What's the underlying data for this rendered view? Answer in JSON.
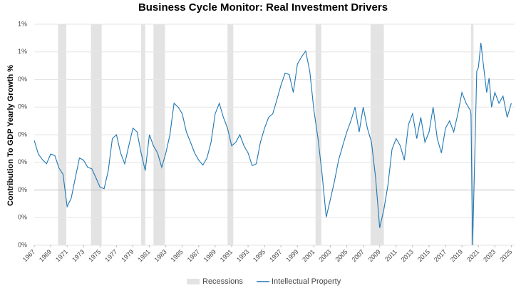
{
  "chart_data": {
    "type": "line",
    "title": "Business Cycle Monitor: Real Investment Drivers",
    "y_label": "Contribution To GDP Yearly Growth %",
    "xlim": [
      1967,
      2025.4
    ],
    "xticks": [
      1967,
      1969,
      1971,
      1973,
      1975,
      1977,
      1979,
      1981,
      1983,
      1985,
      1987,
      1989,
      1991,
      1993,
      1995,
      1997,
      1999,
      2001,
      2003,
      2005,
      2007,
      2009,
      2011,
      2013,
      2015,
      2017,
      2019,
      2021,
      2023,
      2025
    ],
    "ylim": [
      -0.2,
      0.6
    ],
    "yticks": [
      {
        "value": 0.6,
        "label": "1%"
      },
      {
        "value": 0.5,
        "label": "1%"
      },
      {
        "value": 0.4,
        "label": "0%"
      },
      {
        "value": 0.3,
        "label": "0%"
      },
      {
        "value": 0.2,
        "label": "0%"
      },
      {
        "value": 0.1,
        "label": "0%"
      },
      {
        "value": 0,
        "label": "0%"
      },
      {
        "value": -0.1,
        "label": "0%"
      },
      {
        "value": -0.2,
        "label": "0%"
      }
    ],
    "grid": true,
    "legend": "bottom",
    "recessions": {
      "name": "Recessions",
      "color": "#e3e3e3",
      "spans": [
        [
          1969.9,
          1970.9
        ],
        [
          1973.9,
          1975.2
        ],
        [
          1980.0,
          1980.5
        ],
        [
          1981.5,
          1982.9
        ],
        [
          1990.5,
          1991.2
        ],
        [
          2001.2,
          2001.9
        ],
        [
          2007.9,
          2009.5
        ],
        [
          2020.1,
          2020.4
        ]
      ]
    },
    "x": [
      1967,
      1967.5,
      1968,
      1968.5,
      1969,
      1969.5,
      1970,
      1970.5,
      1971,
      1971.5,
      1972,
      1972.5,
      1973,
      1973.5,
      1974,
      1974.5,
      1975,
      1975.5,
      1976,
      1976.5,
      1977,
      1977.5,
      1978,
      1978.5,
      1979,
      1979.5,
      1980,
      1980.5,
      1981,
      1981.5,
      1982,
      1982.5,
      1983,
      1983.5,
      1984,
      1984.5,
      1985,
      1985.5,
      1986,
      1986.5,
      1987,
      1987.5,
      1988,
      1988.5,
      1989,
      1989.5,
      1990,
      1990.5,
      1991,
      1991.5,
      1992,
      1992.5,
      1993,
      1993.5,
      1994,
      1994.5,
      1995,
      1995.5,
      1996,
      1996.5,
      1997,
      1997.5,
      1998,
      1998.5,
      1999,
      1999.5,
      2000,
      2000.5,
      2001,
      2001.5,
      2002,
      2002.5,
      2003,
      2003.5,
      2004,
      2004.5,
      2005,
      2005.5,
      2006,
      2006.5,
      2007,
      2007.5,
      2008,
      2008.5,
      2009,
      2009.5,
      2010,
      2010.5,
      2011,
      2011.5,
      2012,
      2012.5,
      2013,
      2013.5,
      2014,
      2014.5,
      2015,
      2015.5,
      2016,
      2016.5,
      2017,
      2017.5,
      2018,
      2018.5,
      2019,
      2019.5,
      2020,
      2020.1,
      2020.3,
      2020.5,
      2020.8,
      2021,
      2021.3,
      2021.6,
      2022,
      2022.3,
      2022.6,
      2023,
      2023.5,
      2024,
      2024.5,
      2025
    ],
    "series": [
      {
        "name": "Intellectual Property",
        "color": "#1f77b4",
        "values": [
          0.18,
          0.13,
          0.11,
          0.095,
          0.13,
          0.125,
          0.08,
          0.057,
          -0.06,
          -0.03,
          0.044,
          0.116,
          0.108,
          0.082,
          0.077,
          0.044,
          0.01,
          0.005,
          0.07,
          0.186,
          0.2,
          0.134,
          0.095,
          0.16,
          0.224,
          0.21,
          0.134,
          0.07,
          0.2,
          0.16,
          0.134,
          0.082,
          0.134,
          0.2,
          0.314,
          0.3,
          0.276,
          0.21,
          0.173,
          0.134,
          0.108,
          0.09,
          0.116,
          0.173,
          0.276,
          0.314,
          0.263,
          0.224,
          0.16,
          0.173,
          0.2,
          0.16,
          0.134,
          0.088,
          0.095,
          0.173,
          0.224,
          0.263,
          0.276,
          0.327,
          0.379,
          0.423,
          0.418,
          0.353,
          0.456,
          0.482,
          0.503,
          0.43,
          0.289,
          0.186,
          0.057,
          -0.098,
          -0.034,
          0.031,
          0.108,
          0.16,
          0.21,
          0.25,
          0.3,
          0.21,
          0.3,
          0.224,
          0.173,
          0.044,
          -0.137,
          -0.072,
          0.018,
          0.147,
          0.186,
          0.16,
          0.108,
          0.237,
          0.276,
          0.186,
          0.263,
          0.173,
          0.21,
          0.3,
          0.186,
          0.134,
          0.224,
          0.25,
          0.21,
          0.276,
          0.353,
          0.314,
          0.289,
          0.276,
          -0.2,
          0.044,
          0.43,
          0.443,
          0.533,
          0.456,
          0.353,
          0.405,
          0.3,
          0.353,
          0.314,
          0.34,
          0.263,
          0.314
        ]
      }
    ]
  }
}
